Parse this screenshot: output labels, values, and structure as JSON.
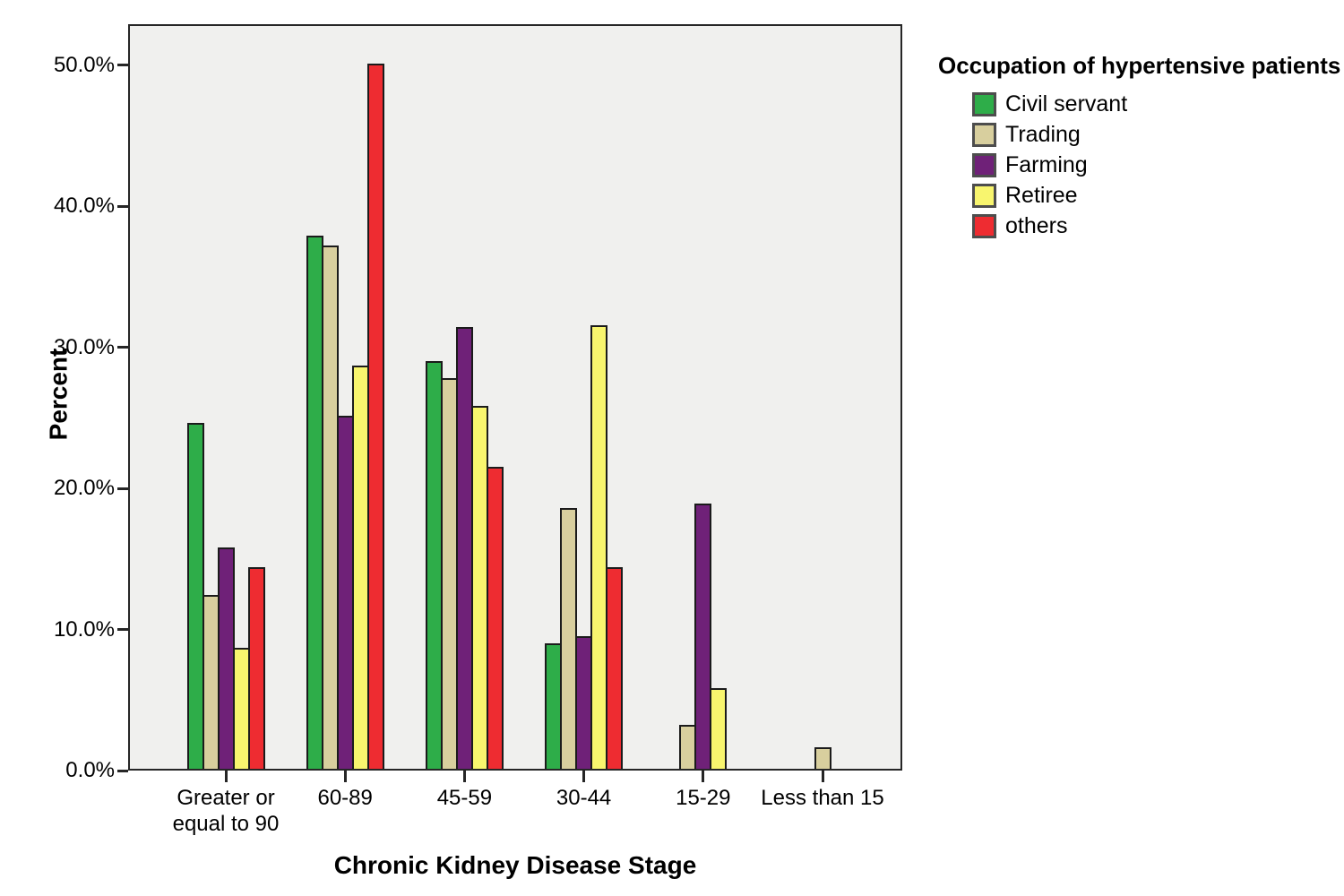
{
  "chart_data": {
    "type": "bar",
    "title": "",
    "xlabel": "Chronic Kidney Disease Stage",
    "ylabel": "Percent",
    "legend_title": "Occupation of hypertensive patients",
    "legend_position": "right",
    "grid": false,
    "plot_background": "#F0F0EE",
    "axis_color": "#262626",
    "categories": [
      "Greater or equal to 90",
      "60-89",
      "45-59",
      "30-44",
      "15-29",
      "Less than 15"
    ],
    "series": [
      {
        "name": "Civil servant",
        "color": "#2EAD49",
        "values": [
          24.5,
          37.8,
          28.9,
          8.9,
          0,
          0
        ]
      },
      {
        "name": "Trading",
        "color": "#D8CF9E",
        "values": [
          12.3,
          37.1,
          27.7,
          18.5,
          3.1,
          1.5
        ]
      },
      {
        "name": "Farming",
        "color": "#6F2178",
        "values": [
          15.7,
          25.0,
          31.3,
          9.4,
          18.8,
          0
        ]
      },
      {
        "name": "Retiree",
        "color": "#F8F56E",
        "values": [
          8.6,
          28.6,
          25.7,
          31.4,
          5.7,
          0
        ]
      },
      {
        "name": "others",
        "color": "#EE2C31",
        "values": [
          14.3,
          50.0,
          21.4,
          14.3,
          0,
          0
        ]
      }
    ],
    "y_ticks": [
      {
        "label": "0.0%",
        "value": 0
      },
      {
        "label": "10.0%",
        "value": 10
      },
      {
        "label": "20.0%",
        "value": 20
      },
      {
        "label": "30.0%",
        "value": 30
      },
      {
        "label": "40.0%",
        "value": 40
      },
      {
        "label": "50.0%",
        "value": 50
      }
    ],
    "ylim": [
      0,
      52.9
    ]
  }
}
